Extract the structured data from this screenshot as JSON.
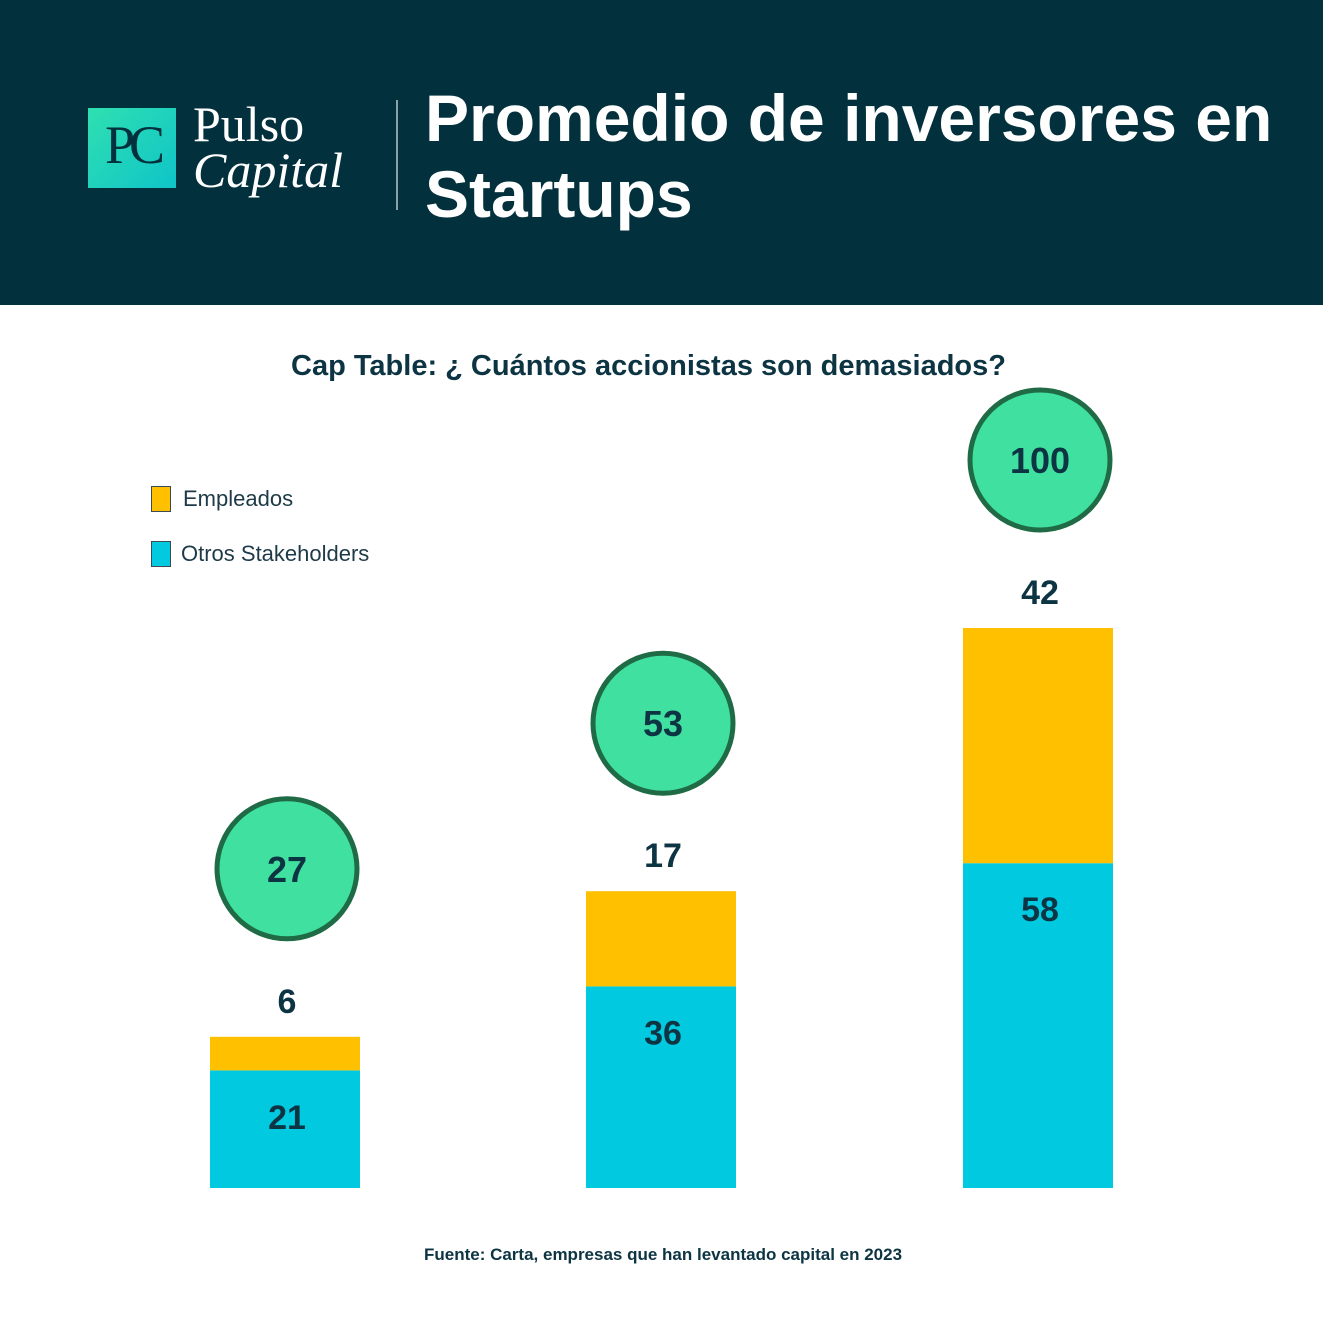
{
  "header": {
    "logo_mark": "PC",
    "logo_line1": "Pulso",
    "logo_line2": "Capital",
    "title_line1": "Promedio de inversores en",
    "title_line2": "Startups"
  },
  "subtitle": "Cap Table: ¿ Cuántos accionistas son demasiados?",
  "legend": [
    {
      "label": "Empleados",
      "color": "#FFC000"
    },
    {
      "label": "Otros Stakeholders",
      "color": "#00C9E0"
    }
  ],
  "chart_data": {
    "type": "bar",
    "stacked": true,
    "categories": [
      "",
      "",
      ""
    ],
    "series": [
      {
        "name": "Otros Stakeholders",
        "values": [
          21,
          36,
          58
        ],
        "color": "#00C9E0"
      },
      {
        "name": "Empleados",
        "values": [
          6,
          17,
          42
        ],
        "color": "#FFC000"
      }
    ],
    "totals": [
      27,
      53,
      100
    ],
    "total_marker_color": "#40E0A0",
    "total_marker_border": "#1E6B45"
  },
  "source": "Fuente: Carta, empresas que han levantado capital en 2023"
}
